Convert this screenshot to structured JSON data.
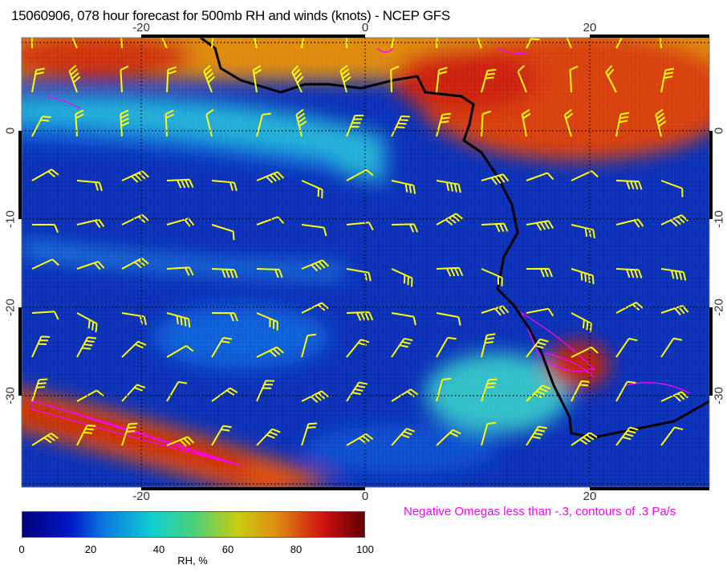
{
  "title": "15060906, 078 hour forecast for 500mb RH and winds (knots) - NCEP GFS",
  "x_ticks": [
    "-20",
    "0",
    "20"
  ],
  "y_ticks": [
    "0",
    "-10",
    "-20",
    "-30"
  ],
  "colorbar": {
    "labels": [
      "0",
      "20",
      "40",
      "60",
      "80",
      "100"
    ],
    "unit": "RH, %",
    "colors": [
      "#00007a",
      "#0018c8",
      "#10cfd0",
      "#c8cc10",
      "#d01010",
      "#600000"
    ]
  },
  "omega_note": "Negative Omegas less than -.3, contours of .3 Pa/s",
  "colors": {
    "barbs": "#ffff00",
    "omega": "#ff00ff",
    "coast": "#000000"
  }
}
